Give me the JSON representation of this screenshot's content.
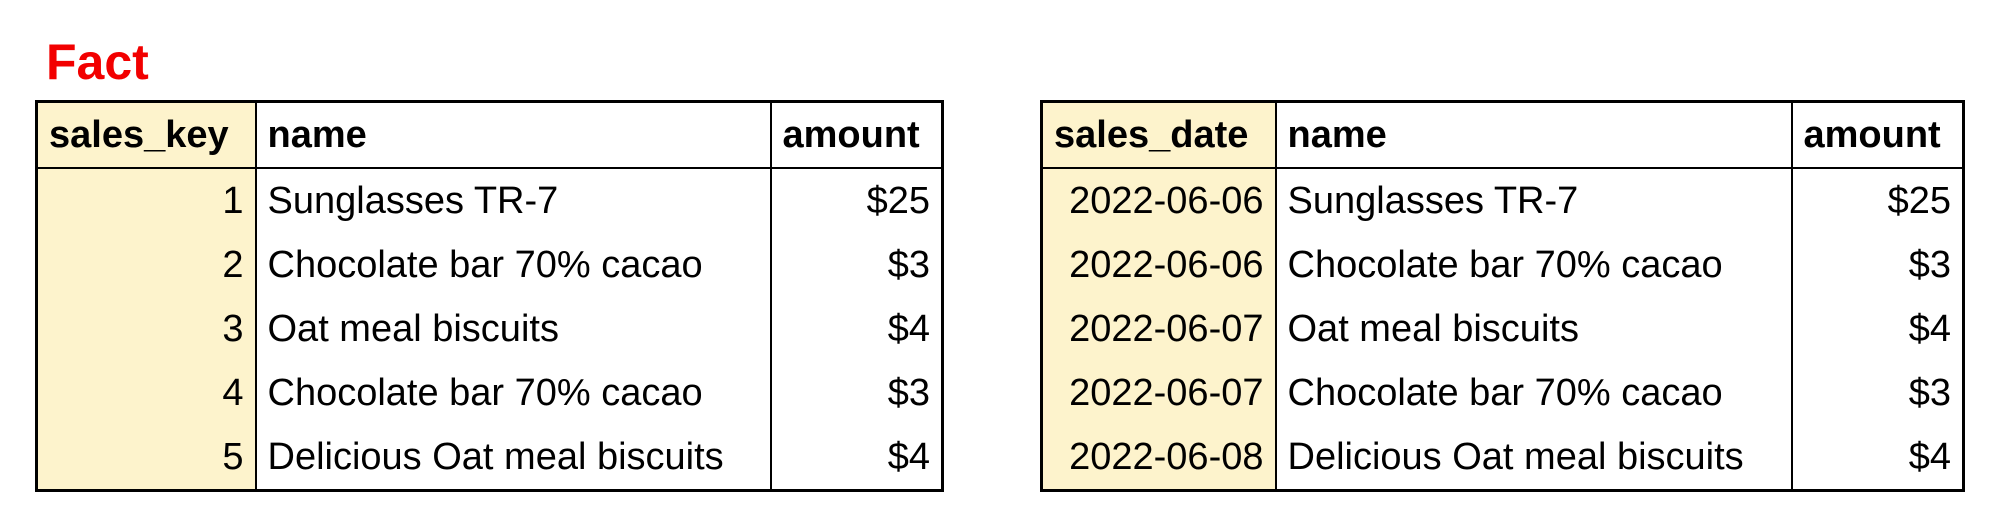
{
  "title": "Fact",
  "colors": {
    "title": "#f20000",
    "key_column_highlight": "#fdf3cc",
    "border": "#000000"
  },
  "tables": [
    {
      "headers": [
        "sales_key",
        "name",
        "amount"
      ],
      "rows": [
        [
          "1",
          "Sunglasses TR-7",
          "$25"
        ],
        [
          "2",
          "Chocolate bar 70% cacao",
          "$3"
        ],
        [
          "3",
          "Oat meal biscuits",
          "$4"
        ],
        [
          "4",
          "Chocolate bar 70% cacao",
          "$3"
        ],
        [
          "5",
          "Delicious Oat meal biscuits",
          "$4"
        ]
      ]
    },
    {
      "headers": [
        "sales_date",
        "name",
        "amount"
      ],
      "rows": [
        [
          "2022-06-06",
          "Sunglasses TR-7",
          "$25"
        ],
        [
          "2022-06-06",
          "Chocolate bar 70% cacao",
          "$3"
        ],
        [
          "2022-06-07",
          "Oat meal biscuits",
          "$4"
        ],
        [
          "2022-06-07",
          "Chocolate bar 70% cacao",
          "$3"
        ],
        [
          "2022-06-08",
          "Delicious Oat meal biscuits",
          "$4"
        ]
      ]
    }
  ]
}
